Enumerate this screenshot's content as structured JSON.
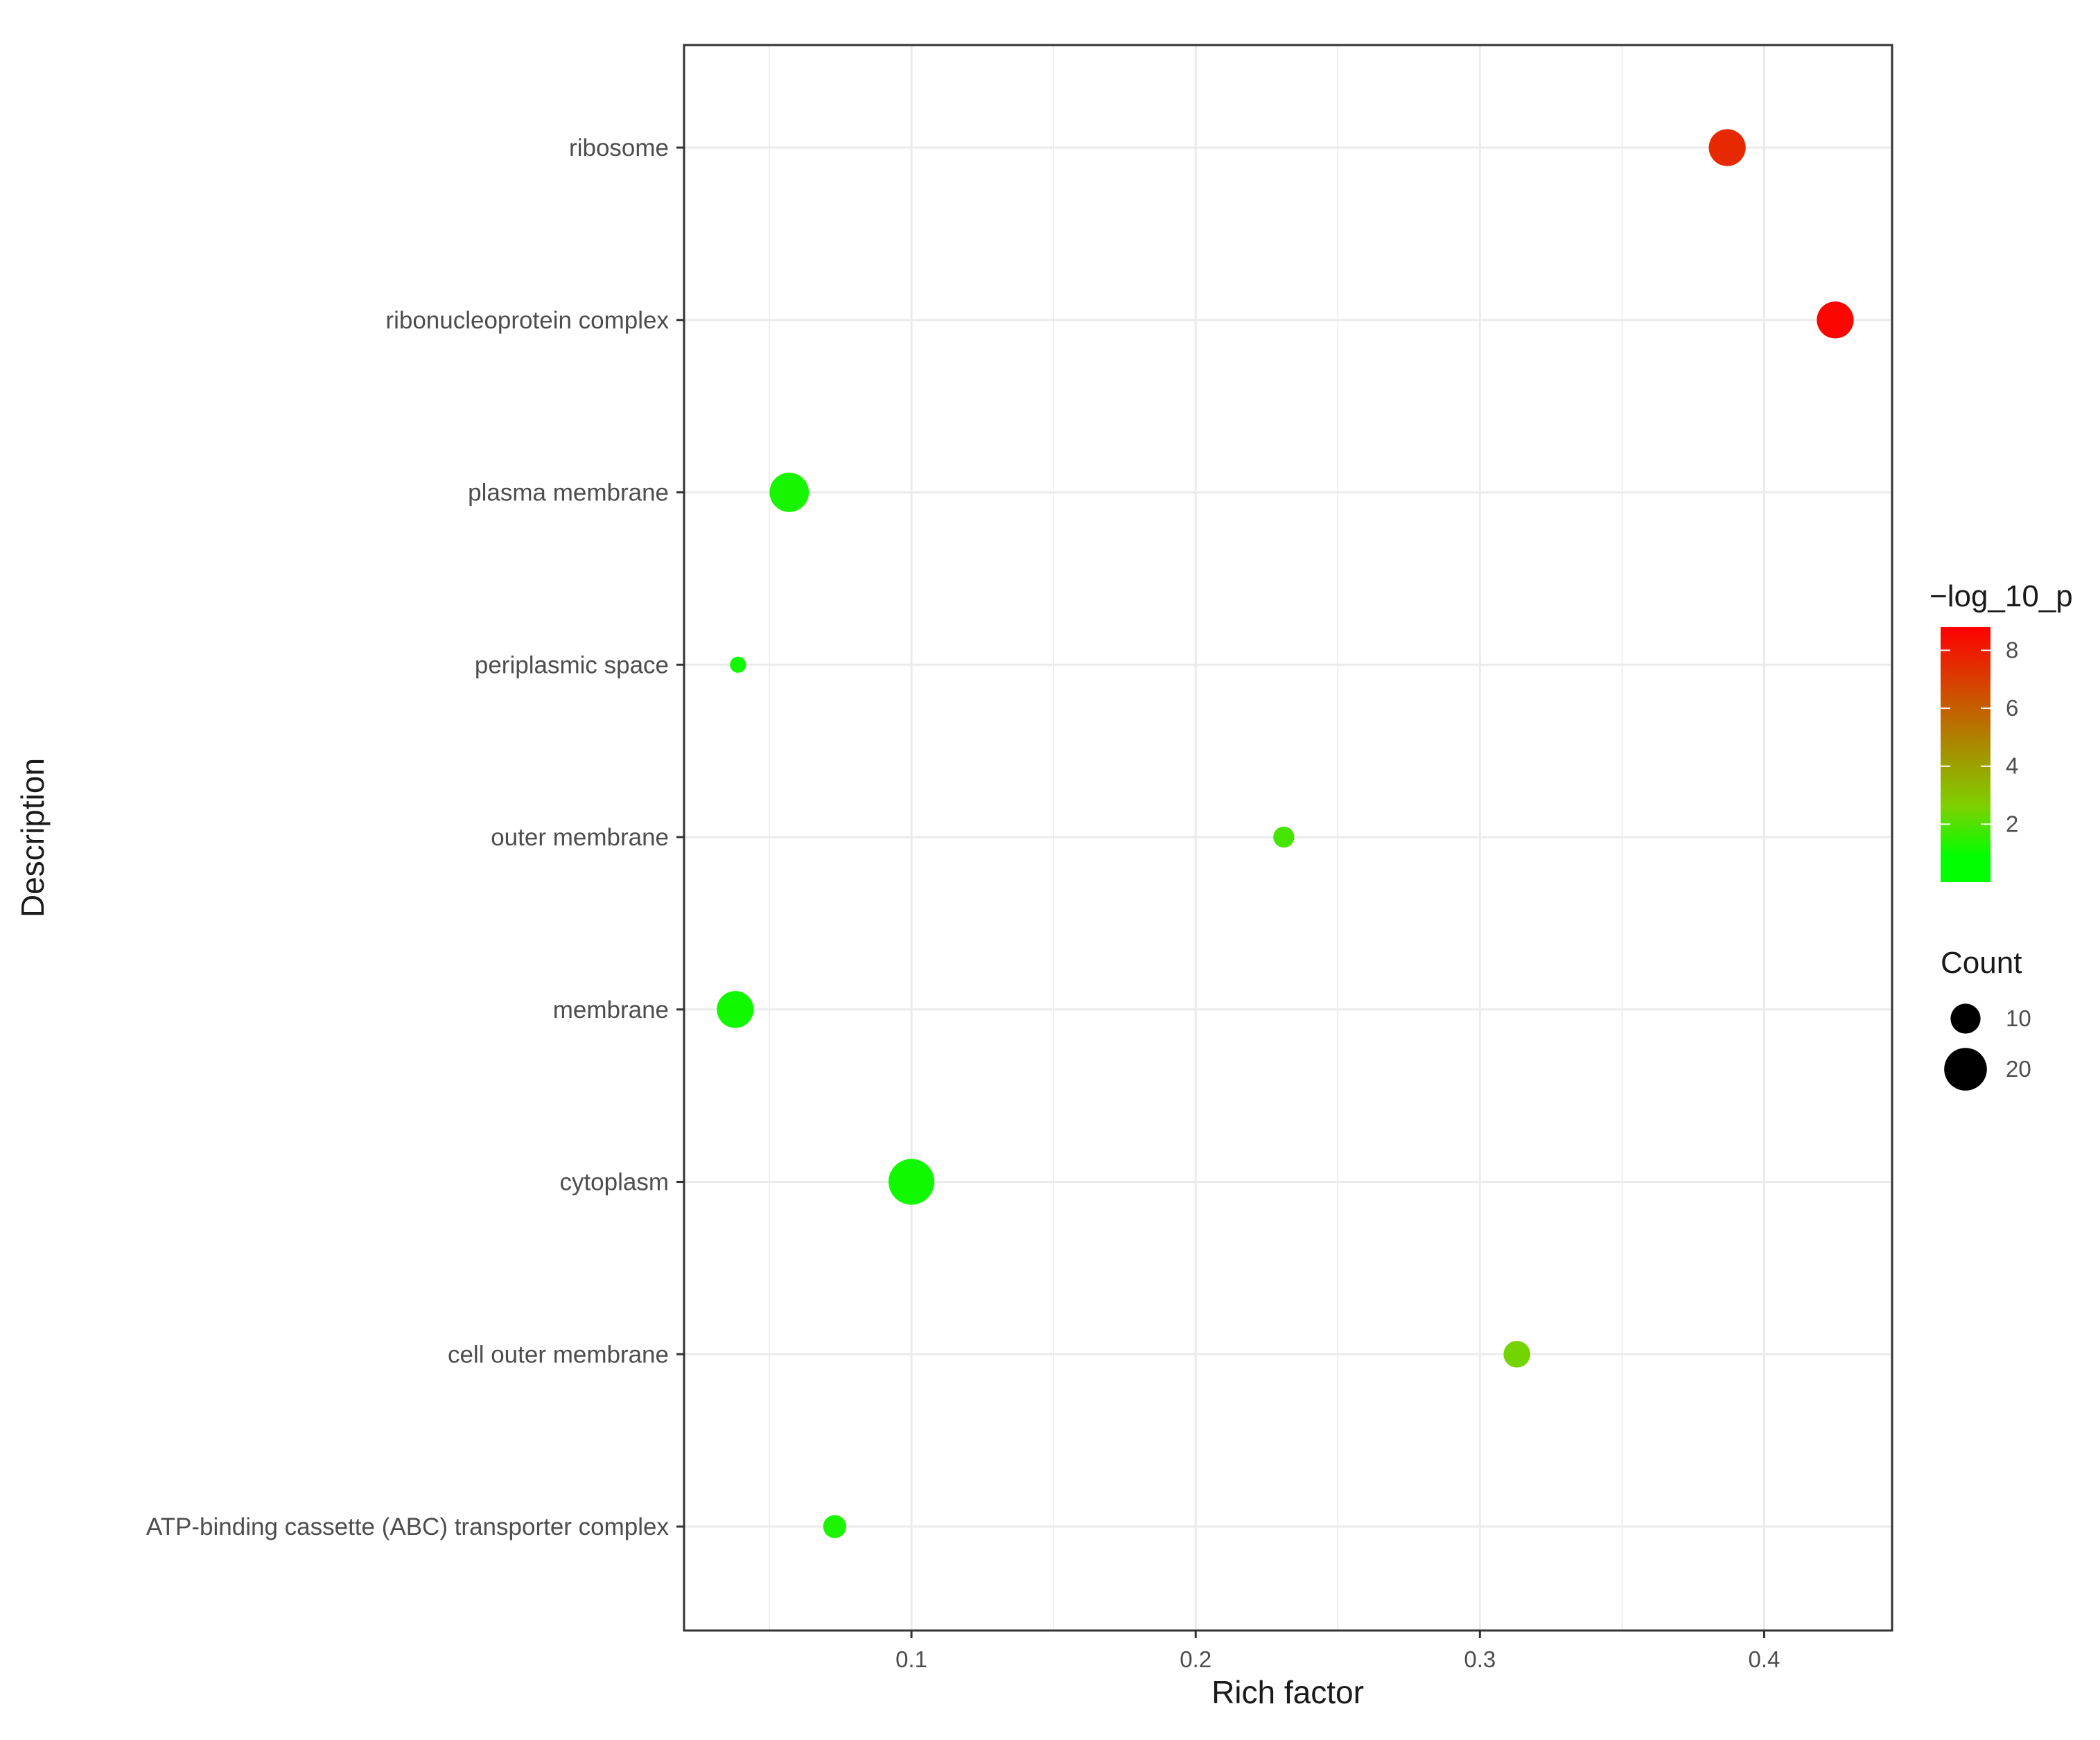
{
  "chart_data": {
    "type": "scatter",
    "xlabel": "Rich factor",
    "ylabel": "Description",
    "xlim": [
      0.02,
      0.445
    ],
    "x_ticks": [
      "0.1",
      "0.2",
      "0.3",
      "0.4"
    ],
    "grid": true,
    "legend_position": "right",
    "categories": [
      "ribosome",
      "ribonucleoprotein complex",
      "plasma membrane",
      "periplasmic space",
      "outer membrane",
      "membrane",
      "cytoplasm",
      "cell outer membrane",
      "ATP-binding cassette (ABC) transporter complex"
    ],
    "points": [
      {
        "category": "ribosome",
        "rich_factor": 0.387,
        "count": 15,
        "neg_log10_p": 7.5
      },
      {
        "category": "ribonucleoprotein complex",
        "rich_factor": 0.425,
        "count": 15,
        "neg_log10_p": 8.6
      },
      {
        "category": "plasma membrane",
        "rich_factor": 0.057,
        "count": 17,
        "neg_log10_p": 0.4
      },
      {
        "category": "periplasmic space",
        "rich_factor": 0.039,
        "count": 3,
        "neg_log10_p": 0.3
      },
      {
        "category": "outer membrane",
        "rich_factor": 0.231,
        "count": 5,
        "neg_log10_p": 1.2
      },
      {
        "category": "membrane",
        "rich_factor": 0.038,
        "count": 15,
        "neg_log10_p": 0.3
      },
      {
        "category": "cytoplasm",
        "rich_factor": 0.1,
        "count": 23,
        "neg_log10_p": 0.3
      },
      {
        "category": "cell outer membrane",
        "rich_factor": 0.313,
        "count": 8,
        "neg_log10_p": 2.0
      },
      {
        "category": "ATP-binding cassette (ABC) transporter complex",
        "rich_factor": 0.073,
        "count": 6,
        "neg_log10_p": 0.5
      }
    ],
    "color_legend": {
      "title": "−log_10_p",
      "ticks": [
        "2",
        "4",
        "6",
        "8"
      ],
      "range": [
        0,
        8.8
      ],
      "low_color": "#00ff00",
      "mid_color": "#7fd000",
      "high_color": "#ff0000"
    },
    "size_legend": {
      "title": "Count",
      "entries": [
        {
          "value": 10,
          "label": "10"
        },
        {
          "value": 20,
          "label": "20"
        }
      ]
    }
  }
}
